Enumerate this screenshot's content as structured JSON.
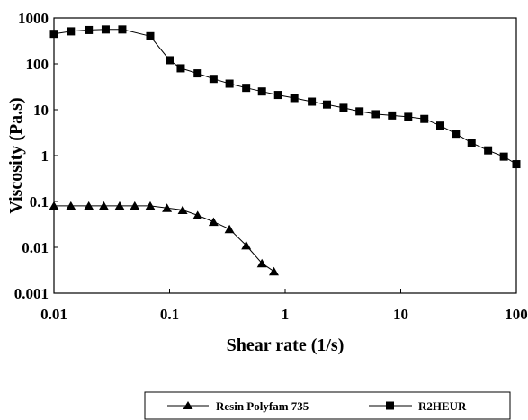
{
  "chart_data": {
    "type": "line",
    "xlabel": "Shear rate (1/s)",
    "ylabel": "Viscosity (Pa.s)",
    "x_scale": "log",
    "y_scale": "log",
    "xlim": [
      0.01,
      100
    ],
    "ylim": [
      0.001,
      1000
    ],
    "x_ticks": [
      "0.01",
      "0.1",
      "1",
      "10",
      "100"
    ],
    "y_ticks": [
      "1000",
      "100",
      "10",
      "1",
      "0.1",
      "0.01",
      "0.001"
    ],
    "grid": false,
    "legend_position": "bottom",
    "series": [
      {
        "name": "Resin Polyfam 735",
        "marker": "triangle",
        "color": "#000000",
        "x": [
          0.01,
          0.014,
          0.02,
          0.027,
          0.037,
          0.05,
          0.068,
          0.095,
          0.13,
          0.175,
          0.24,
          0.33,
          0.46,
          0.63,
          0.8
        ],
        "y": [
          0.08,
          0.08,
          0.08,
          0.08,
          0.08,
          0.08,
          0.08,
          0.072,
          0.065,
          0.05,
          0.036,
          0.025,
          0.011,
          0.0045,
          0.003
        ]
      },
      {
        "name": "R2HEUR",
        "marker": "square",
        "color": "#000000",
        "x": [
          0.01,
          0.014,
          0.02,
          0.028,
          0.039,
          0.068,
          0.1,
          0.125,
          0.175,
          0.24,
          0.33,
          0.46,
          0.63,
          0.87,
          1.2,
          1.7,
          2.3,
          3.2,
          4.4,
          6.1,
          8.4,
          11.6,
          16,
          22,
          30,
          41,
          57,
          78,
          100
        ],
        "y": [
          450,
          510,
          545,
          560,
          560,
          400,
          120,
          80,
          62,
          47,
          37,
          30,
          25,
          21,
          18,
          15,
          13,
          11,
          9.2,
          8,
          7.5,
          7,
          6.3,
          4.5,
          3,
          1.9,
          1.3,
          0.95,
          0.65
        ]
      }
    ]
  }
}
